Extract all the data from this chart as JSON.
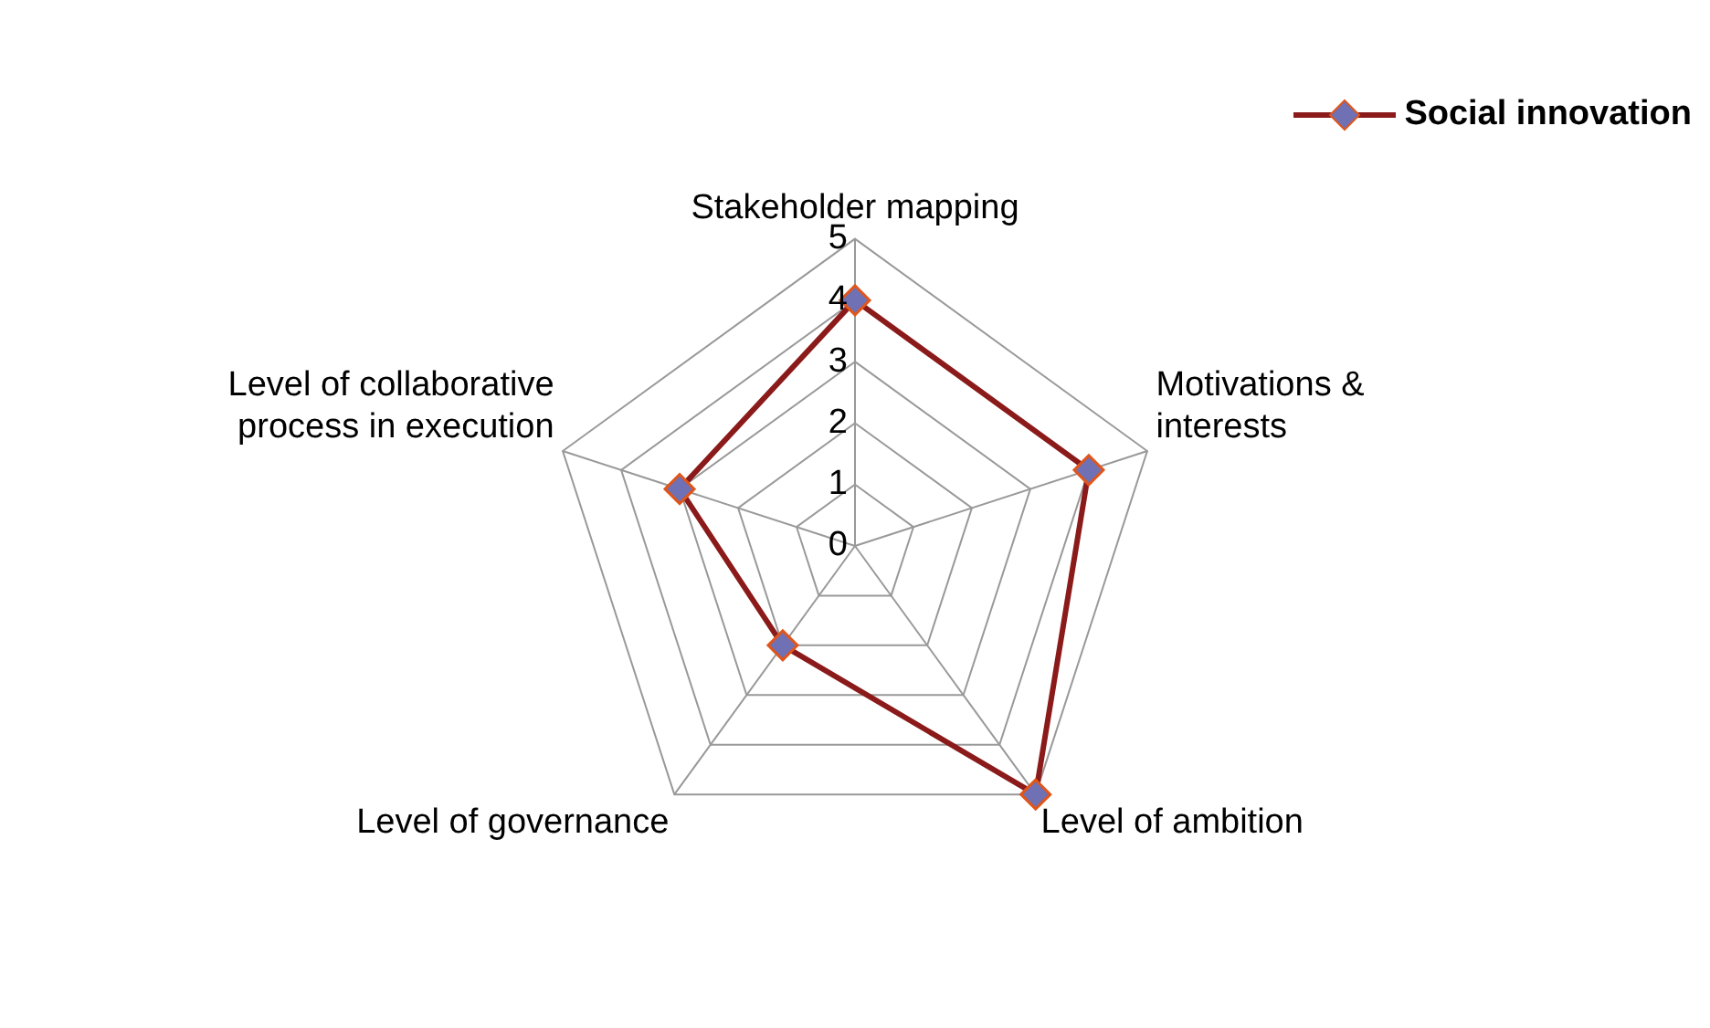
{
  "chart_data": {
    "type": "radar",
    "categories": [
      "Stakeholder mapping",
      "Motivations & interests",
      "Level of ambition",
      "Level of governance",
      "Level of collaborative process in execution"
    ],
    "series": [
      {
        "name": "Social innovation",
        "color": "#8b1a1a",
        "values": [
          4,
          4,
          5,
          2,
          3
        ]
      }
    ],
    "ylim": [
      0,
      5
    ],
    "yticks": [
      0,
      1,
      2,
      3,
      4,
      5
    ],
    "grid": true,
    "legend": "top right",
    "marker": "diamond"
  }
}
